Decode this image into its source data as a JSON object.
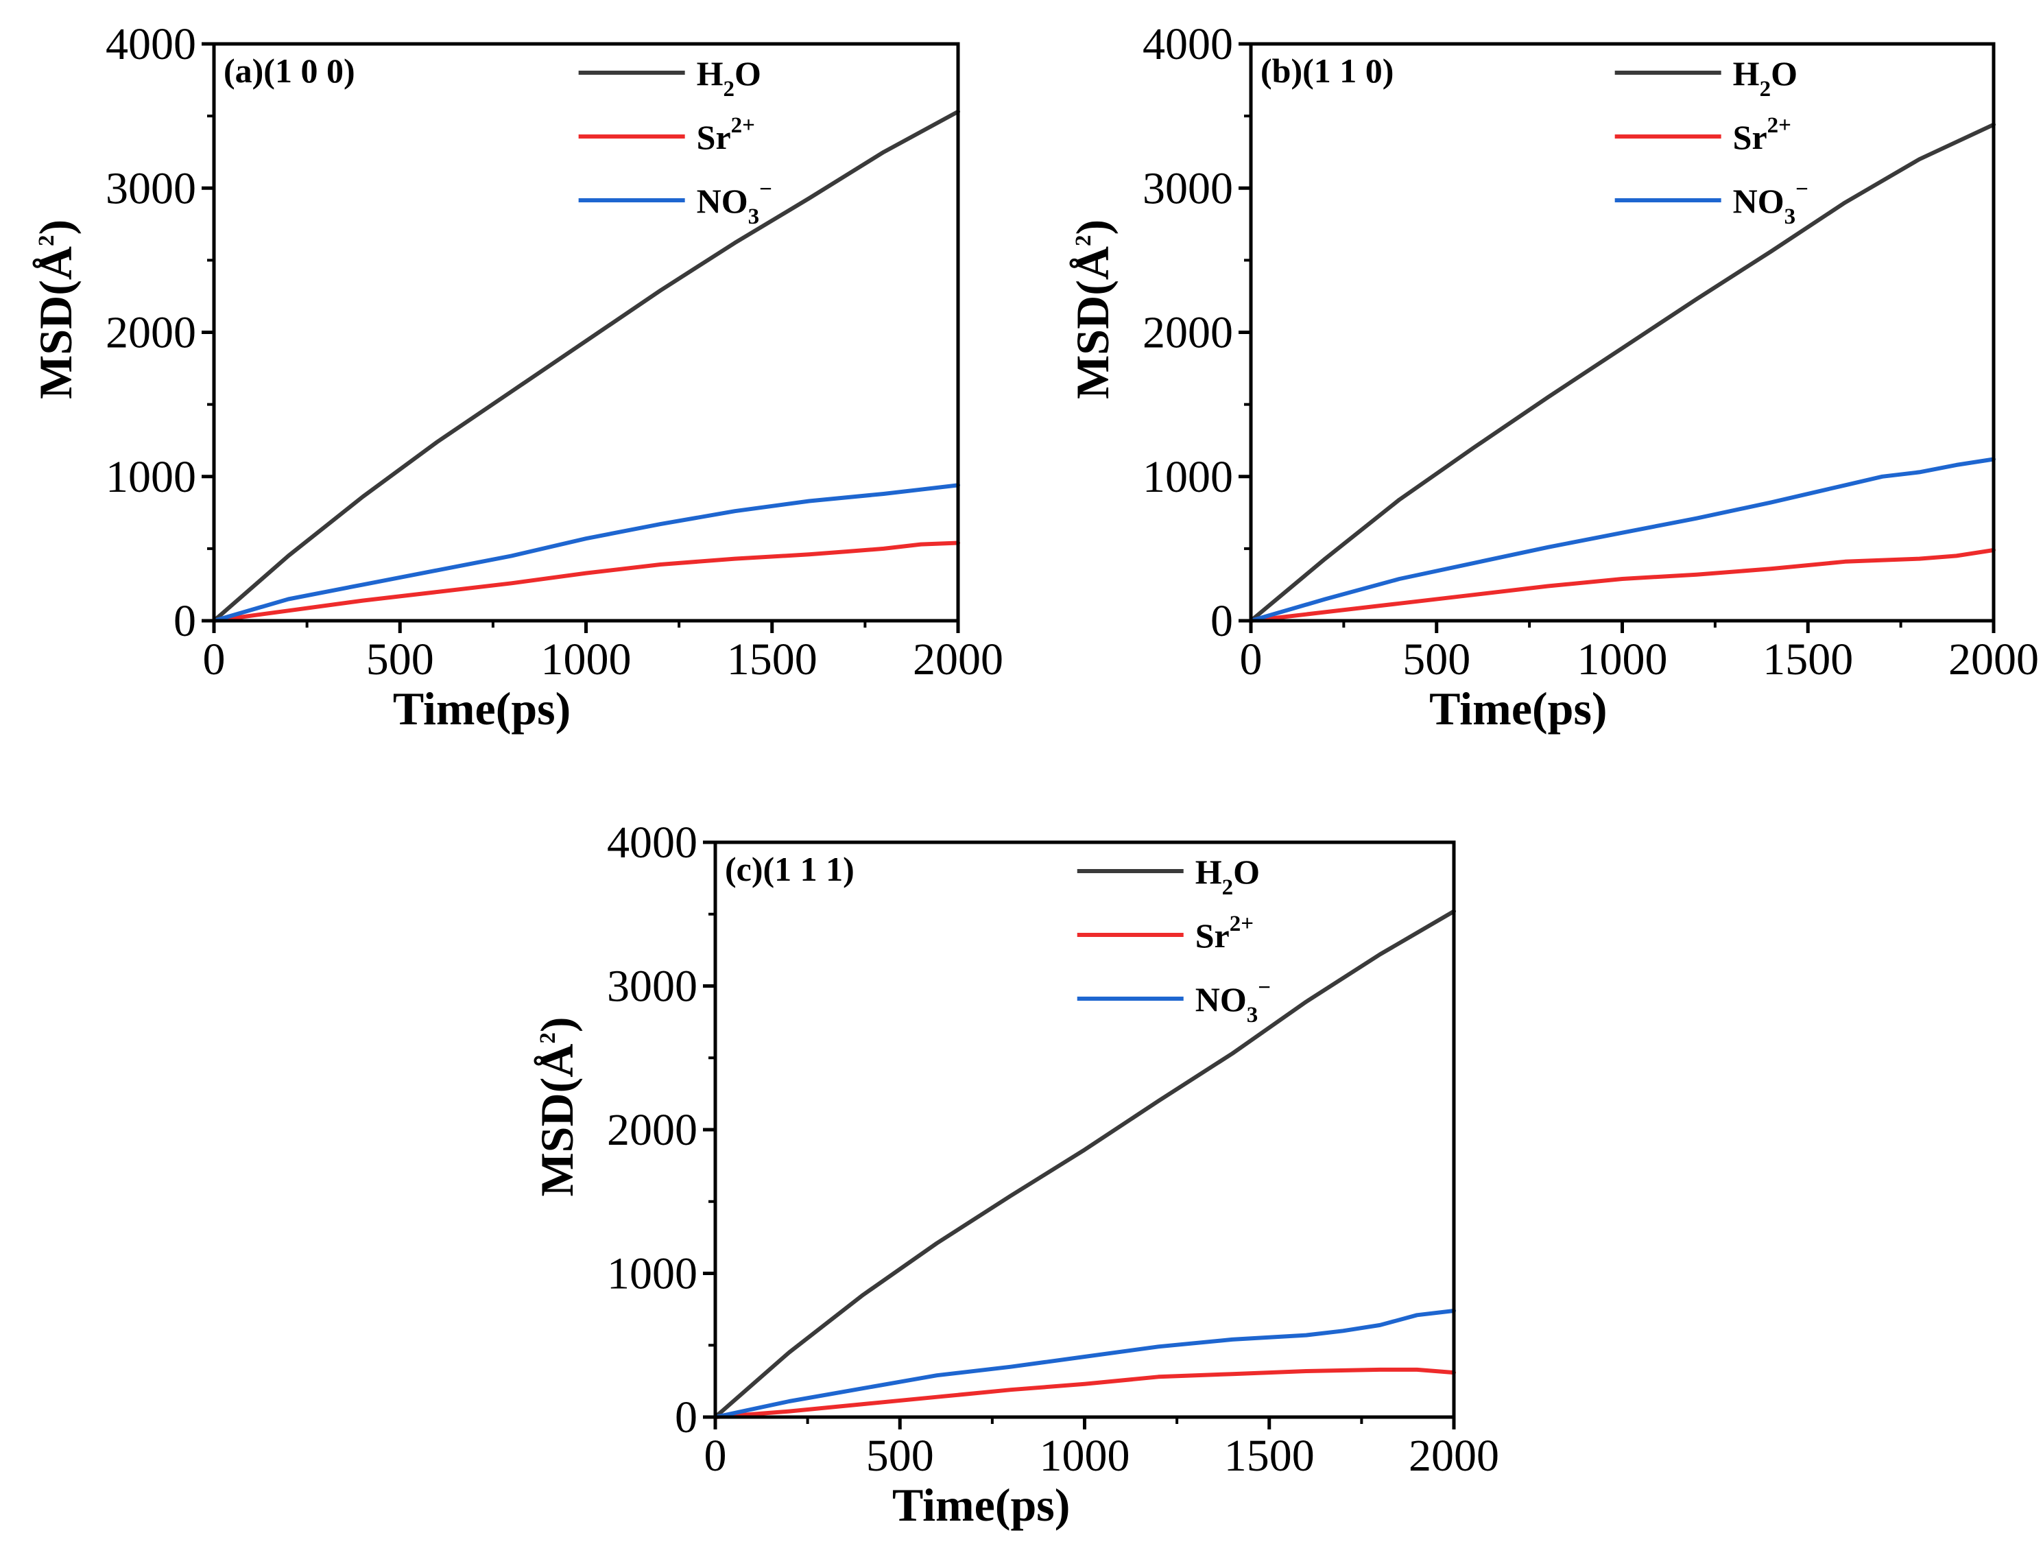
{
  "chart_data": [
    {
      "type": "line",
      "panel_label": "(a)(1 0 0)",
      "xlabel": "Time(ps)",
      "ylabel": {
        "prefix": "MSD(",
        "symbol": "Å",
        "sup": "2",
        "suffix": ")"
      },
      "xlim": [
        0,
        2000
      ],
      "ylim": [
        0,
        4000
      ],
      "xticks": [
        "0",
        "500",
        "1000",
        "1500",
        "2000"
      ],
      "yticks": [
        "0",
        "1000",
        "2000",
        "3000",
        "4000"
      ],
      "legend_position": "top",
      "series": [
        {
          "name": "H2O",
          "label": {
            "base": "H",
            "sub": "2",
            "after": "O",
            "sup": ""
          },
          "color": "#3a3a3a",
          "x": [
            0,
            200,
            400,
            600,
            800,
            1000,
            1200,
            1400,
            1600,
            1800,
            2000
          ],
          "y": [
            0,
            450,
            860,
            1240,
            1590,
            1940,
            2290,
            2620,
            2930,
            3250,
            3530
          ]
        },
        {
          "name": "Sr2+",
          "label": {
            "base": "Sr",
            "sub": "",
            "after": "",
            "sup": "2+"
          },
          "color": "#ee2b2b",
          "x": [
            0,
            200,
            400,
            600,
            800,
            1000,
            1200,
            1400,
            1600,
            1700,
            1800,
            1900,
            2000
          ],
          "y": [
            0,
            70,
            140,
            200,
            260,
            330,
            390,
            430,
            460,
            480,
            500,
            530,
            540
          ]
        },
        {
          "name": "NO3-",
          "label": {
            "base": "NO",
            "sub": "3",
            "after": "",
            "sup": "−"
          },
          "color": "#1e66d0",
          "x": [
            0,
            200,
            400,
            600,
            800,
            1000,
            1200,
            1400,
            1600,
            1800,
            1900,
            2000
          ],
          "y": [
            0,
            150,
            250,
            350,
            450,
            570,
            670,
            760,
            830,
            880,
            910,
            940
          ]
        }
      ]
    },
    {
      "type": "line",
      "panel_label": "(b)(1 1 0)",
      "xlabel": "Time(ps)",
      "ylabel": {
        "prefix": "MSD(",
        "symbol": "Å",
        "sup": "2",
        "suffix": ")"
      },
      "xlim": [
        0,
        2000
      ],
      "ylim": [
        0,
        4000
      ],
      "xticks": [
        "0",
        "500",
        "1000",
        "1500",
        "2000"
      ],
      "yticks": [
        "0",
        "1000",
        "2000",
        "3000",
        "4000"
      ],
      "legend_position": "top",
      "series": [
        {
          "name": "H2O",
          "label": {
            "base": "H",
            "sub": "2",
            "after": "O",
            "sup": ""
          },
          "color": "#3a3a3a",
          "x": [
            0,
            200,
            400,
            600,
            800,
            1000,
            1200,
            1400,
            1600,
            1800,
            2000
          ],
          "y": [
            0,
            430,
            840,
            1200,
            1550,
            1890,
            2230,
            2560,
            2900,
            3200,
            3440
          ]
        },
        {
          "name": "Sr2+",
          "label": {
            "base": "Sr",
            "sub": "",
            "after": "",
            "sup": "2+"
          },
          "color": "#ee2b2b",
          "x": [
            0,
            200,
            400,
            600,
            800,
            1000,
            1200,
            1400,
            1600,
            1800,
            1900,
            2000
          ],
          "y": [
            0,
            60,
            120,
            180,
            240,
            290,
            320,
            360,
            410,
            430,
            450,
            490
          ]
        },
        {
          "name": "NO3-",
          "label": {
            "base": "NO",
            "sub": "3",
            "after": "",
            "sup": "−"
          },
          "color": "#1e66d0",
          "x": [
            0,
            200,
            400,
            600,
            800,
            1000,
            1200,
            1400,
            1600,
            1700,
            1800,
            1900,
            2000
          ],
          "y": [
            0,
            150,
            290,
            400,
            510,
            610,
            710,
            820,
            940,
            1000,
            1030,
            1080,
            1120
          ]
        }
      ]
    },
    {
      "type": "line",
      "panel_label": "(c)(1 1 1)",
      "xlabel": "Time(ps)",
      "ylabel": {
        "prefix": "MSD(",
        "symbol": "Å",
        "sup": "2",
        "suffix": ")"
      },
      "xlim": [
        0,
        2000
      ],
      "ylim": [
        0,
        4000
      ],
      "xticks": [
        "0",
        "500",
        "1000",
        "1500",
        "2000"
      ],
      "yticks": [
        "0",
        "1000",
        "2000",
        "3000",
        "4000"
      ],
      "legend_position": "top",
      "series": [
        {
          "name": "H2O",
          "label": {
            "base": "H",
            "sub": "2",
            "after": "O",
            "sup": ""
          },
          "color": "#3a3a3a",
          "x": [
            0,
            200,
            400,
            600,
            800,
            1000,
            1200,
            1400,
            1600,
            1800,
            1900,
            2000
          ],
          "y": [
            0,
            450,
            850,
            1210,
            1540,
            1860,
            2200,
            2530,
            2890,
            3220,
            3370,
            3520
          ]
        },
        {
          "name": "Sr2+",
          "label": {
            "base": "Sr",
            "sub": "",
            "after": "",
            "sup": "2+"
          },
          "color": "#ee2b2b",
          "x": [
            0,
            200,
            400,
            600,
            800,
            1000,
            1200,
            1400,
            1600,
            1800,
            1900,
            2000
          ],
          "y": [
            0,
            40,
            90,
            140,
            190,
            230,
            280,
            300,
            320,
            330,
            330,
            310
          ]
        },
        {
          "name": "NO3-",
          "label": {
            "base": "NO",
            "sub": "3",
            "after": "",
            "sup": "−"
          },
          "color": "#1e66d0",
          "x": [
            0,
            200,
            400,
            600,
            800,
            1000,
            1200,
            1400,
            1600,
            1700,
            1800,
            1900,
            2000
          ],
          "y": [
            0,
            110,
            200,
            290,
            350,
            420,
            490,
            540,
            570,
            600,
            640,
            710,
            740
          ]
        }
      ]
    }
  ]
}
